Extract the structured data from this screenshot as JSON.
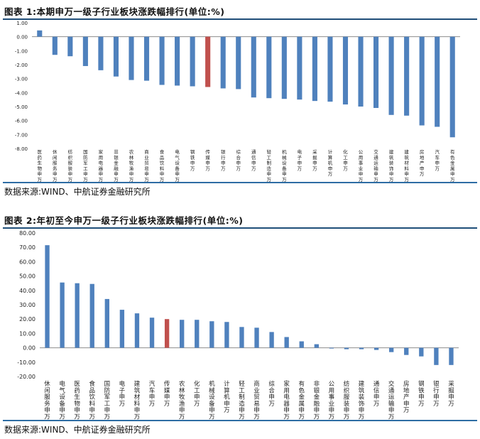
{
  "figure1": {
    "title": "图表 1:本期申万一级子行业板块涨跌幅排行(单位:%)",
    "source": "数据来源:WIND、中航证券金融研究所"
  },
  "figure2": {
    "title": "图表 2:年初至今申万一级子行业板块涨跌幅排行(单位:%)",
    "source": "数据来源:WIND、中航证券金融研究所"
  },
  "chart_data": [
    {
      "type": "bar",
      "title": "本期申万一级子行业板块涨跌幅排行(单位:%)",
      "categories": [
        "医药生物申万",
        "休闲服务申万",
        "纺织服装申万",
        "国防军工申万",
        "家用电器申万",
        "非银金融申万",
        "农林牧渔申万",
        "商业贸易申万",
        "食品饮料申万",
        "电气设备申万",
        "钢铁申万",
        "传媒申万",
        "银行申万",
        "综合申万",
        "通信申万",
        "轻工制造申万",
        "机械设备申万",
        "电子申万",
        "采掘申万",
        "计算机申万",
        "化工申万",
        "公用事业申万",
        "交通运输申万",
        "建筑装饰申万",
        "建筑材料申万",
        "房地产申万",
        "汽车申万",
        "有色金属申万"
      ],
      "values": [
        0.45,
        -1.3,
        -1.4,
        -2.1,
        -2.4,
        -2.85,
        -3.1,
        -3.15,
        -3.45,
        -3.5,
        -3.55,
        -3.6,
        -3.7,
        -3.75,
        -4.35,
        -4.4,
        -4.45,
        -4.5,
        -4.6,
        -4.65,
        -4.85,
        -5.0,
        -5.1,
        -5.6,
        -5.65,
        -6.35,
        -6.45,
        -7.2
      ],
      "highlight": "传媒申万",
      "ylim": [
        -8,
        1
      ],
      "yticks": [
        "1.00",
        "0.00",
        "-1.00",
        "-2.00",
        "-3.00",
        "-4.00",
        "-5.00",
        "-6.00",
        "-7.00",
        "-8.00"
      ],
      "colors": {
        "bar": "#4f81bd",
        "highlight": "#c0504d"
      }
    },
    {
      "type": "bar",
      "title": "年初至今申万一级子行业板块涨跌幅排行(单位:%)",
      "categories": [
        "休闲服务申万",
        "电气设备申万",
        "医药生物申万",
        "食品饮料申万",
        "国防军工申万",
        "电子申万",
        "建筑材料申万",
        "汽车申万",
        "传媒申万",
        "农林牧渔申万",
        "化工申万",
        "机械设备申万",
        "计算机申万",
        "轻工制造申万",
        "商业贸易申万",
        "综合申万",
        "家用电器申万",
        "有色金属申万",
        "非银金融申万",
        "公用事业申万",
        "纺织服装申万",
        "建筑装饰申万",
        "通信申万",
        "交通运输申万",
        "房地产申万",
        "钢铁申万",
        "银行申万",
        "采掘申万"
      ],
      "values": [
        71.5,
        45.5,
        45,
        44.5,
        34,
        26.5,
        24,
        21,
        20,
        19.5,
        19.5,
        18.5,
        18,
        14.5,
        14,
        11,
        7.5,
        4.5,
        2.5,
        -0.5,
        -1,
        -1,
        -1.5,
        -3,
        -5,
        -6,
        -12,
        -12
      ],
      "highlight": "传媒申万",
      "ylim": [
        -20,
        80
      ],
      "yticks": [
        "80.00",
        "70.00",
        "60.00",
        "50.00",
        "40.00",
        "30.00",
        "20.00",
        "10.00",
        "0.00",
        "-10.00",
        "-20.00"
      ],
      "colors": {
        "bar": "#4f81bd",
        "highlight": "#c0504d"
      }
    }
  ]
}
